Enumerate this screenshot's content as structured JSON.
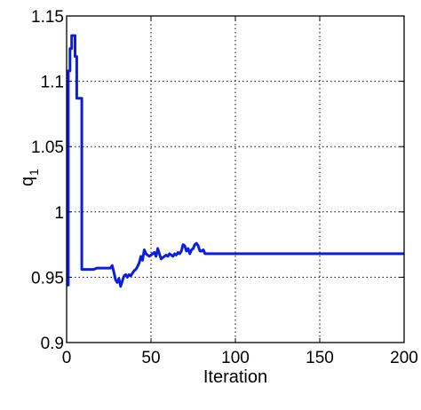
{
  "chart_data": {
    "type": "line",
    "title": "",
    "xlabel": "Iteration",
    "ylabel_main": "q",
    "ylabel_sub": "1",
    "xlim": [
      0,
      200
    ],
    "ylim": [
      0.9,
      1.15
    ],
    "grid": true,
    "x_ticks": [
      0,
      50,
      100,
      150,
      200
    ],
    "x_tick_labels": [
      "0",
      "50",
      "100",
      "150",
      "200"
    ],
    "y_ticks": [
      0.9,
      0.95,
      1.0,
      1.05,
      1.1,
      1.15
    ],
    "y_tick_labels": [
      "0.9",
      "0.95",
      "1",
      "1.05",
      "1.1",
      "1.15"
    ],
    "series": [
      {
        "color": "#0b1de0",
        "x": [
          0,
          1,
          1,
          2,
          2,
          3,
          3,
          4,
          4,
          5,
          5,
          6,
          6,
          7,
          7,
          8,
          8,
          9,
          9,
          10,
          10,
          12,
          14,
          16,
          18,
          20,
          22,
          24,
          26,
          27,
          28,
          29,
          30,
          31,
          32,
          33,
          34,
          35,
          36,
          37,
          38,
          39,
          40,
          41,
          42,
          43,
          44,
          45,
          46,
          47,
          48,
          49,
          50,
          51,
          52,
          53,
          54,
          55,
          56,
          57,
          58,
          59,
          60,
          61,
          62,
          63,
          64,
          65,
          66,
          67,
          68,
          69,
          70,
          71,
          72,
          73,
          74,
          75,
          76,
          77,
          78,
          79,
          80,
          81,
          82,
          83,
          84,
          90,
          100,
          120,
          140,
          160,
          180,
          200
        ],
        "y": [
          0.944,
          0.944,
          1.108,
          1.108,
          1.125,
          1.125,
          1.135,
          1.135,
          1.135,
          1.135,
          1.119,
          1.119,
          1.087,
          1.087,
          1.087,
          1.087,
          1.087,
          1.087,
          0.956,
          0.956,
          0.956,
          0.956,
          0.956,
          0.956,
          0.957,
          0.957,
          0.957,
          0.957,
          0.957,
          0.959,
          0.954,
          0.948,
          0.946,
          0.949,
          0.943,
          0.947,
          0.951,
          0.952,
          0.95,
          0.952,
          0.951,
          0.953,
          0.955,
          0.956,
          0.958,
          0.961,
          0.966,
          0.963,
          0.971,
          0.968,
          0.967,
          0.966,
          0.967,
          0.968,
          0.969,
          0.966,
          0.972,
          0.968,
          0.964,
          0.965,
          0.966,
          0.967,
          0.966,
          0.968,
          0.967,
          0.966,
          0.968,
          0.967,
          0.969,
          0.968,
          0.97,
          0.975,
          0.974,
          0.97,
          0.972,
          0.968,
          0.971,
          0.972,
          0.975,
          0.976,
          0.974,
          0.97,
          0.97,
          0.971,
          0.968,
          0.968,
          0.968,
          0.968,
          0.968,
          0.968,
          0.968,
          0.968,
          0.968,
          0.968
        ]
      }
    ]
  }
}
